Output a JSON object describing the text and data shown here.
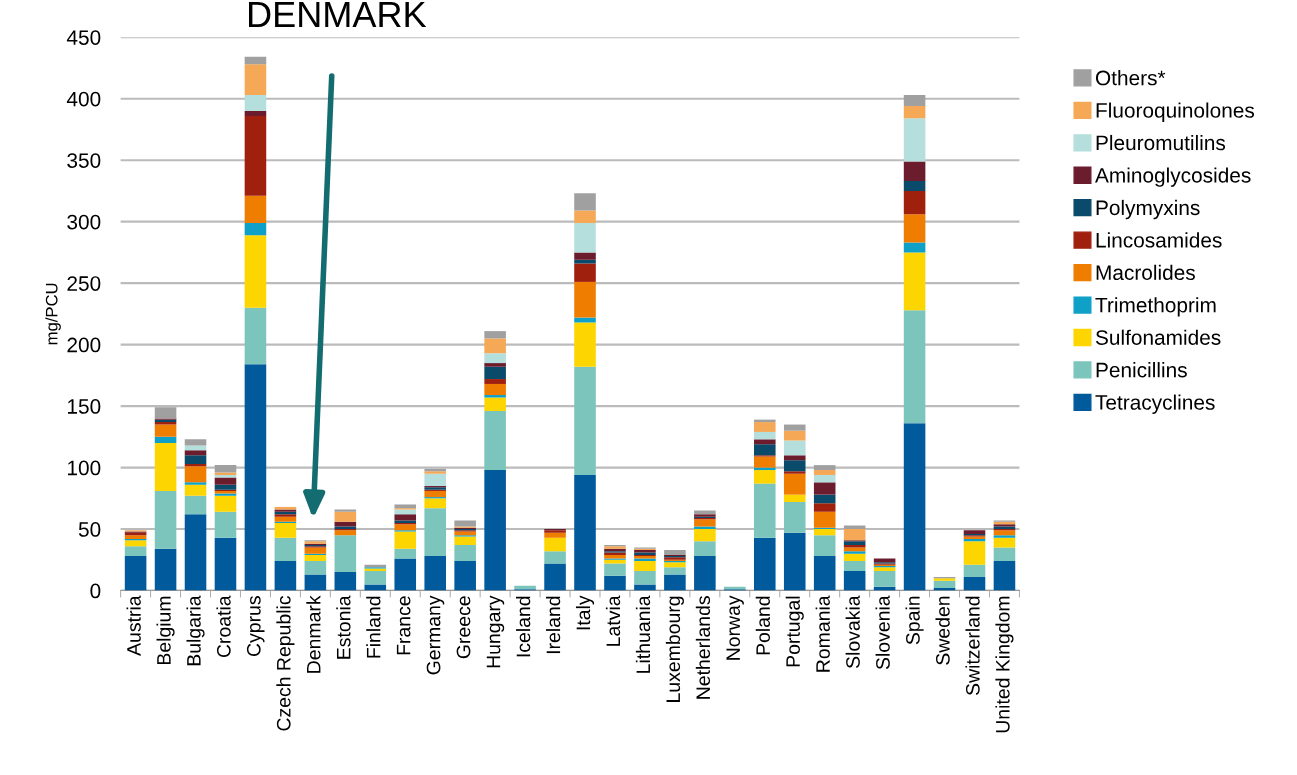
{
  "chart_data": {
    "type": "bar",
    "stacked": true,
    "ylabel": "mg/PCU",
    "ylim": [
      0,
      450
    ],
    "yticks": [
      0,
      50,
      100,
      150,
      200,
      250,
      300,
      350,
      400,
      450
    ],
    "grid": "y",
    "legend": "right",
    "categories": [
      "Austria",
      "Belgium",
      "Bulgaria",
      "Croatia",
      "Cyprus",
      "Czech Republic",
      "Denmark",
      "Estonia",
      "Finland",
      "France",
      "Germany",
      "Greece",
      "Hungary",
      "Iceland",
      "Ireland",
      "Italy",
      "Latvia",
      "Lithuania",
      "Luxembourg",
      "Netherlands",
      "Norway",
      "Poland",
      "Portugal",
      "Romania",
      "Slovakia",
      "Slovenia",
      "Spain",
      "Sweden",
      "Switzerland",
      "United Kingdom"
    ],
    "annotations": [
      "DENMARK"
    ],
    "series": [
      {
        "name": "Tetracyclines",
        "color": "#005a9c",
        "values": [
          28,
          34,
          62,
          43,
          184,
          24,
          13,
          15,
          5,
          26,
          28,
          24,
          98,
          1,
          22,
          94,
          12,
          5,
          13,
          28,
          1,
          43,
          47,
          28,
          16,
          3,
          136,
          2,
          11,
          24
        ]
      },
      {
        "name": "Penicillins",
        "color": "#7cc5bc",
        "values": [
          8,
          47,
          15,
          21,
          46,
          19,
          11,
          30,
          11,
          8,
          39,
          13,
          48,
          3,
          10,
          88,
          10,
          11,
          6,
          12,
          2,
          44,
          25,
          17,
          8,
          13,
          92,
          6,
          10,
          11
        ]
      },
      {
        "name": "Sulfonamides",
        "color": "#fdd500",
        "values": [
          5,
          39,
          9,
          13,
          59,
          12,
          5,
          0,
          2,
          14,
          8,
          7,
          11,
          0,
          11,
          36,
          3,
          8,
          4,
          10,
          0,
          11,
          6,
          5,
          6,
          3,
          47,
          2,
          19,
          8
        ]
      },
      {
        "name": "Trimethoprim",
        "color": "#0fa0c8",
        "values": [
          1,
          5,
          2,
          2,
          10,
          1,
          1,
          0,
          1,
          1,
          1,
          1,
          2,
          0,
          0,
          4,
          1,
          2,
          1,
          2,
          0,
          2,
          0,
          1,
          2,
          1,
          8,
          0,
          2,
          2
        ]
      },
      {
        "name": "Macrolides",
        "color": "#ef7d00",
        "values": [
          3,
          10,
          13,
          2,
          22,
          4,
          5,
          4,
          0,
          5,
          5,
          3,
          9,
          0,
          4,
          29,
          3,
          2,
          1,
          6,
          0,
          9,
          17,
          13,
          3,
          1,
          23,
          0,
          2,
          4
        ]
      },
      {
        "name": "Lincosamides",
        "color": "#a0200e",
        "values": [
          2,
          2,
          2,
          1,
          65,
          2,
          1,
          1,
          0,
          1,
          1,
          1,
          4,
          0,
          2,
          15,
          2,
          1,
          2,
          1,
          0,
          1,
          2,
          7,
          2,
          1,
          19,
          0,
          1,
          1
        ]
      },
      {
        "name": "Polymyxins",
        "color": "#0a4a6a",
        "values": [
          0,
          2,
          7,
          4,
          0,
          2,
          1,
          2,
          0,
          2,
          2,
          1,
          10,
          0,
          0,
          3,
          1,
          2,
          1,
          1,
          0,
          9,
          9,
          7,
          3,
          1,
          8,
          0,
          1,
          2
        ]
      },
      {
        "name": "Aminoglycosides",
        "color": "#6b1d2e",
        "values": [
          1,
          1,
          4,
          6,
          4,
          2,
          1,
          4,
          0,
          5,
          1,
          1,
          3,
          0,
          1,
          6,
          2,
          2,
          1,
          2,
          0,
          4,
          4,
          10,
          1,
          3,
          16,
          0,
          3,
          2
        ]
      },
      {
        "name": "Pleuromutilins",
        "color": "#b5dfdc",
        "values": [
          0,
          0,
          4,
          2,
          13,
          0,
          0,
          0,
          0,
          4,
          10,
          0,
          8,
          0,
          0,
          24,
          0,
          0,
          0,
          0,
          0,
          6,
          12,
          6,
          0,
          0,
          35,
          0,
          0,
          0
        ]
      },
      {
        "name": "Fluoroquinolones",
        "color": "#f5a855",
        "values": [
          1,
          0,
          0,
          2,
          25,
          2,
          2,
          8,
          0,
          1,
          2,
          1,
          12,
          0,
          0,
          10,
          2,
          1,
          0,
          0,
          0,
          8,
          8,
          4,
          9,
          0,
          10,
          0,
          0,
          2
        ]
      },
      {
        "name": "Others*",
        "color": "#a0a0a0",
        "values": [
          0,
          9,
          5,
          6,
          6,
          0,
          1,
          2,
          2,
          3,
          2,
          5,
          6,
          0,
          0,
          14,
          1,
          1,
          4,
          3,
          0,
          2,
          5,
          4,
          3,
          0,
          9,
          1,
          0,
          1
        ]
      }
    ]
  }
}
